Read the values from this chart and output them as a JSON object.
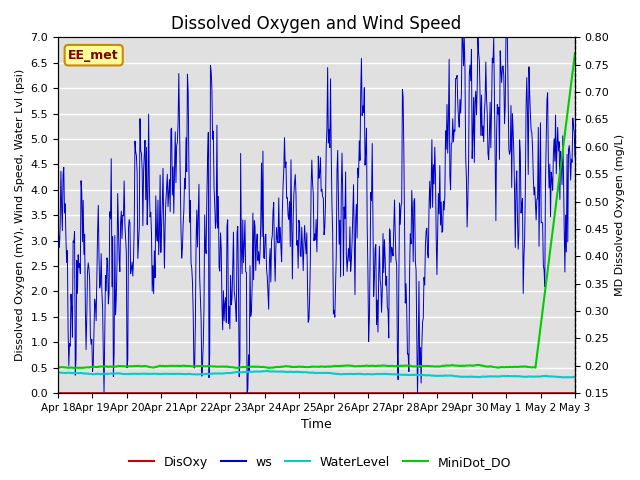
{
  "title": "Dissolved Oxygen and Wind Speed",
  "ylabel_left": "Dissolved Oxygen (mV), Wind Speed, Water Lvl (psi)",
  "ylabel_right": "MD Dissolved Oxygen (mg/L)",
  "xlabel": "Time",
  "ylim_left": [
    0.0,
    7.0
  ],
  "ylim_right": [
    0.15,
    0.8
  ],
  "yticks_left": [
    0.0,
    0.5,
    1.0,
    1.5,
    2.0,
    2.5,
    3.0,
    3.5,
    4.0,
    4.5,
    5.0,
    5.5,
    6.0,
    6.5,
    7.0
  ],
  "yticks_right": [
    0.15,
    0.2,
    0.25,
    0.3,
    0.35,
    0.4,
    0.45,
    0.5,
    0.55,
    0.6,
    0.65,
    0.7,
    0.75,
    0.8
  ],
  "xtick_labels": [
    "Apr 18",
    "Apr 19",
    "Apr 20",
    "Apr 21",
    "Apr 22",
    "Apr 23",
    "Apr 24",
    "Apr 25",
    "Apr 26",
    "Apr 27",
    "Apr 28",
    "Apr 29",
    "Apr 30",
    "May 1",
    "May 2",
    "May 3"
  ],
  "legend_labels": [
    "DisOxy",
    "ws",
    "WaterLevel",
    "MiniDot_DO"
  ],
  "disoxy_color": "#cc0000",
  "ws_color": "#0000cc",
  "water_color": "#00cccc",
  "minidot_color": "#00cc00",
  "station_label": "EE_met",
  "bg_color": "#e0e0e0",
  "grid_color": "#f0f0f0",
  "title_fontsize": 12,
  "axis_fontsize": 8
}
